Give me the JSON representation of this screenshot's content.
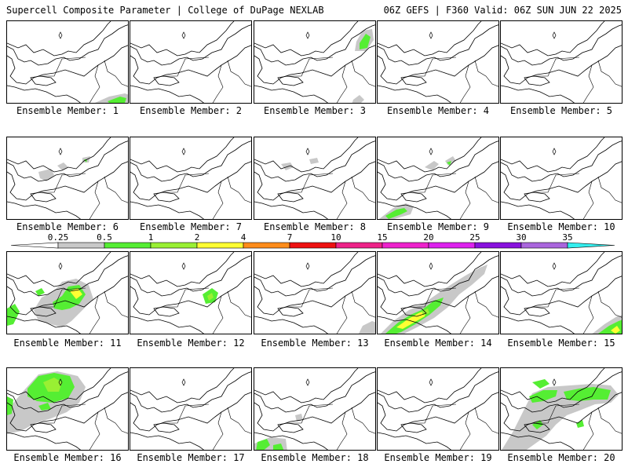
{
  "header": {
    "left_title": "Supercell Composite Parameter | College of DuPage NEXLAB",
    "right_title": "06Z GEFS | F360 Valid: 06Z SUN JUN 22 2025"
  },
  "panels": [
    {
      "label": "Ensemble Member: 1"
    },
    {
      "label": "Ensemble Member: 2"
    },
    {
      "label": "Ensemble Member: 3"
    },
    {
      "label": "Ensemble Member: 4"
    },
    {
      "label": "Ensemble Member: 5"
    },
    {
      "label": "Ensemble Member: 6"
    },
    {
      "label": "Ensemble Member: 7"
    },
    {
      "label": "Ensemble Member: 8"
    },
    {
      "label": "Ensemble Member: 9"
    },
    {
      "label": "Ensemble Member: 10"
    },
    {
      "label": "Ensemble Member: 11"
    },
    {
      "label": "Ensemble Member: 12"
    },
    {
      "label": "Ensemble Member: 13"
    },
    {
      "label": "Ensemble Member: 14"
    },
    {
      "label": "Ensemble Member: 15"
    },
    {
      "label": "Ensemble Member: 16"
    },
    {
      "label": "Ensemble Member: 17"
    },
    {
      "label": "Ensemble Member: 18"
    },
    {
      "label": "Ensemble Member: 19"
    },
    {
      "label": "Ensemble Member: 20"
    }
  ],
  "colorbar": {
    "labels": [
      "0.25",
      "0.5",
      "1",
      "2",
      "4",
      "7",
      "10",
      "15",
      "20",
      "25",
      "30",
      "35"
    ],
    "colors": [
      "#c8c8c8",
      "#55ee33",
      "#99f033",
      "#ffff33",
      "#ff8c1a",
      "#ee1111",
      "#ee2288",
      "#ee22cc",
      "#dd22ee",
      "#8811dd",
      "#aa66dd",
      "#33eeee"
    ]
  },
  "contour_colors": {
    "gray": "#c8c8c8",
    "green": "#55ee33",
    "lime": "#99f033",
    "yellow": "#ffff33"
  }
}
